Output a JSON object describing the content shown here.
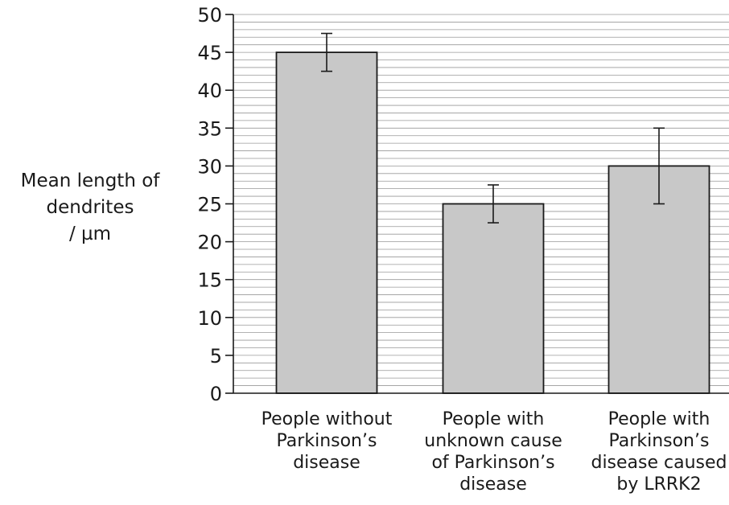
{
  "chart_data": {
    "type": "bar",
    "title": "",
    "xlabel": "",
    "ylabel_lines": [
      "Mean length of",
      "dendrites",
      "/ µm"
    ],
    "categories": [
      [
        "People without",
        "Parkinson’s",
        "disease"
      ],
      [
        "People with",
        "unknown cause",
        "of Parkinson’s",
        "disease"
      ],
      [
        "People with",
        "Parkinson’s",
        "disease caused",
        "by LRRK2"
      ]
    ],
    "values": [
      45,
      25,
      30
    ],
    "error_bars": [
      {
        "low": 42.5,
        "high": 47.5
      },
      {
        "low": 22.5,
        "high": 27.5
      },
      {
        "low": 25,
        "high": 35
      }
    ],
    "ylim": [
      0,
      50
    ],
    "yticks": [
      0,
      5,
      10,
      15,
      20,
      25,
      30,
      35,
      40,
      45,
      50
    ],
    "minor_grid_step": 1,
    "grid": true,
    "legend": "none",
    "bar_color": "#c8c8c8",
    "grid_color": "#999999",
    "axis_color": "#1a1a1a"
  }
}
